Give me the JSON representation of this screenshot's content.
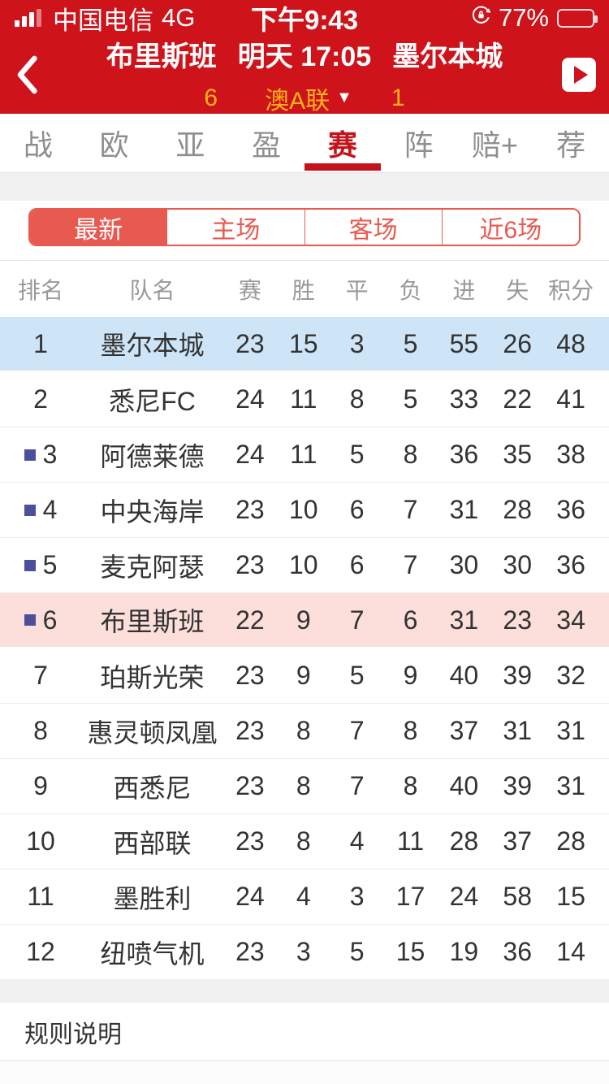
{
  "status_bar": {
    "carrier": "中国电信",
    "network": "4G",
    "time": "下午9:43",
    "battery_text": "77%",
    "battery_level": 77
  },
  "header": {
    "home_team": "布里斯班",
    "match_time": "明天 17:05",
    "away_team": "墨尔本城",
    "home_rank": "6",
    "league": "澳A联",
    "away_rank": "1",
    "dropdown_icon": "▼"
  },
  "tabs": [
    {
      "label": "战",
      "active": false
    },
    {
      "label": "欧",
      "active": false
    },
    {
      "label": "亚",
      "active": false
    },
    {
      "label": "盈",
      "active": false
    },
    {
      "label": "赛",
      "active": true
    },
    {
      "label": "阵",
      "active": false
    },
    {
      "label": "赔+",
      "active": false
    },
    {
      "label": "荐",
      "active": false
    }
  ],
  "filters": [
    {
      "label": "最新",
      "active": true
    },
    {
      "label": "主场",
      "active": false
    },
    {
      "label": "客场",
      "active": false
    },
    {
      "label": "近6场",
      "active": false
    }
  ],
  "table": {
    "headers": [
      "排名",
      "队名",
      "赛",
      "胜",
      "平",
      "负",
      "进",
      "失",
      "积分"
    ],
    "rows": [
      {
        "rank": "1",
        "team": "墨尔本城",
        "played": "23",
        "win": "15",
        "draw": "3",
        "loss": "5",
        "goals_for": "55",
        "goals_against": "26",
        "points": "48",
        "highlight": "blue",
        "marker": false
      },
      {
        "rank": "2",
        "team": "悉尼FC",
        "played": "24",
        "win": "11",
        "draw": "8",
        "loss": "5",
        "goals_for": "33",
        "goals_against": "22",
        "points": "41",
        "highlight": "",
        "marker": false
      },
      {
        "rank": "3",
        "team": "阿德莱德",
        "played": "24",
        "win": "11",
        "draw": "5",
        "loss": "8",
        "goals_for": "36",
        "goals_against": "35",
        "points": "38",
        "highlight": "",
        "marker": true
      },
      {
        "rank": "4",
        "team": "中央海岸",
        "played": "23",
        "win": "10",
        "draw": "6",
        "loss": "7",
        "goals_for": "31",
        "goals_against": "28",
        "points": "36",
        "highlight": "",
        "marker": true
      },
      {
        "rank": "5",
        "team": "麦克阿瑟",
        "played": "23",
        "win": "10",
        "draw": "6",
        "loss": "7",
        "goals_for": "30",
        "goals_against": "30",
        "points": "36",
        "highlight": "",
        "marker": true
      },
      {
        "rank": "6",
        "team": "布里斯班",
        "played": "22",
        "win": "9",
        "draw": "7",
        "loss": "6",
        "goals_for": "31",
        "goals_against": "23",
        "points": "34",
        "highlight": "pink",
        "marker": true
      },
      {
        "rank": "7",
        "team": "珀斯光荣",
        "played": "23",
        "win": "9",
        "draw": "5",
        "loss": "9",
        "goals_for": "40",
        "goals_against": "39",
        "points": "32",
        "highlight": "",
        "marker": false
      },
      {
        "rank": "8",
        "team": "惠灵顿凤凰",
        "played": "23",
        "win": "8",
        "draw": "7",
        "loss": "8",
        "goals_for": "37",
        "goals_against": "31",
        "points": "31",
        "highlight": "",
        "marker": false
      },
      {
        "rank": "9",
        "team": "西悉尼",
        "played": "23",
        "win": "8",
        "draw": "7",
        "loss": "8",
        "goals_for": "40",
        "goals_against": "39",
        "points": "31",
        "highlight": "",
        "marker": false
      },
      {
        "rank": "10",
        "team": "西部联",
        "played": "23",
        "win": "8",
        "draw": "4",
        "loss": "11",
        "goals_for": "28",
        "goals_against": "37",
        "points": "28",
        "highlight": "",
        "marker": false
      },
      {
        "rank": "11",
        "team": "墨胜利",
        "played": "24",
        "win": "4",
        "draw": "3",
        "loss": "17",
        "goals_for": "24",
        "goals_against": "58",
        "points": "15",
        "highlight": "",
        "marker": false
      },
      {
        "rank": "12",
        "team": "纽喷气机",
        "played": "23",
        "win": "3",
        "draw": "5",
        "loss": "15",
        "goals_for": "19",
        "goals_against": "36",
        "points": "14",
        "highlight": "",
        "marker": false
      }
    ]
  },
  "footer": {
    "rules_label": "规则说明"
  },
  "colors": {
    "primary_red": "#ce131b",
    "active_tab_red": "#c3141b",
    "accent_coral": "#e85a50",
    "gold": "#ffb31a",
    "row_highlight_blue": "#cde5f7",
    "row_highlight_pink": "#fcdfda",
    "marker_indigo": "#4c4f9c"
  }
}
